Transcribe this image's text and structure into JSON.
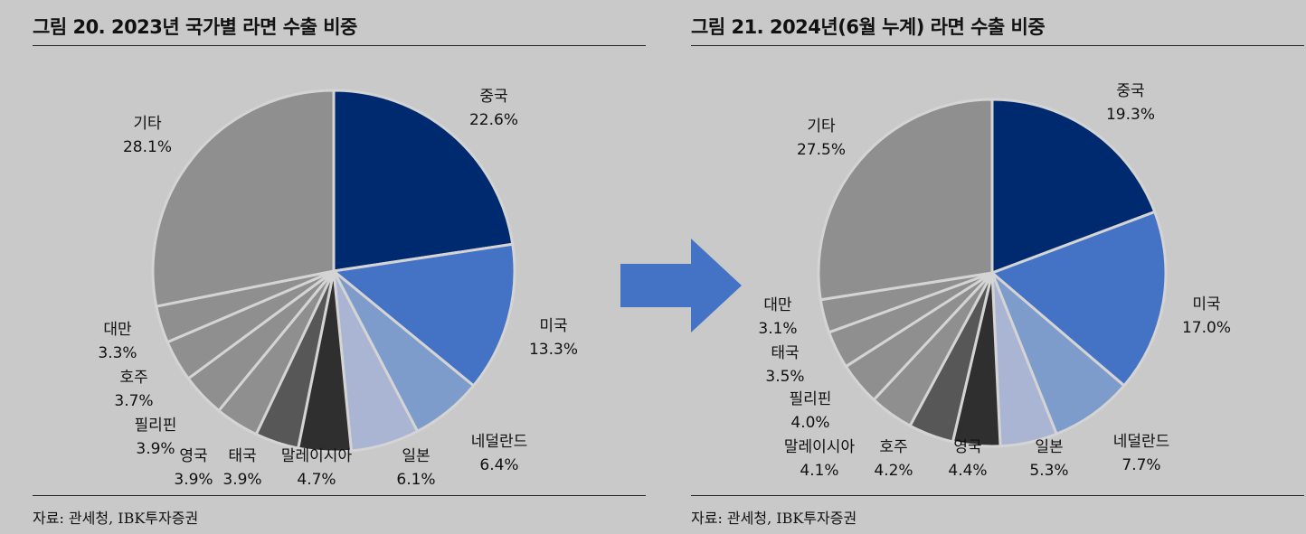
{
  "left": {
    "title": "그림 20. 2023년 국가별 라면 수출 비중",
    "source": "자료: 관세청, IBK투자증권"
  },
  "right": {
    "title": "그림 21. 2024년(6월 누계) 라면 수출 비중",
    "source": "자료: 관세청, IBK투자증권"
  },
  "arrow_icon": "arrow-right-icon",
  "chart_data": [
    {
      "type": "pie",
      "title": "그림 20. 2023년 국가별 라면 수출 비중",
      "slices": [
        {
          "label": "중국",
          "value": 22.6,
          "display": "22.6%",
          "color": "#002a70"
        },
        {
          "label": "미국",
          "value": 13.3,
          "display": "13.3%",
          "color": "#4472c4"
        },
        {
          "label": "네덜란드",
          "value": 6.4,
          "display": "6.4%",
          "color": "#7e9ccb"
        },
        {
          "label": "일본",
          "value": 6.1,
          "display": "6.1%",
          "color": "#aab5d4"
        },
        {
          "label": "말레이시아",
          "value": 4.7,
          "display": "4.7%",
          "color": "#2f2f2f"
        },
        {
          "label": "태국",
          "value": 3.9,
          "display": "3.9%",
          "color": "#575757"
        },
        {
          "label": "영국",
          "value": 3.9,
          "display": "3.9%",
          "color": "#8f8f8f"
        },
        {
          "label": "필리핀",
          "value": 3.9,
          "display": "3.9%",
          "color": "#8f8f8f"
        },
        {
          "label": "호주",
          "value": 3.7,
          "display": "3.7%",
          "color": "#8f8f8f"
        },
        {
          "label": "대만",
          "value": 3.3,
          "display": "3.3%",
          "color": "#8f8f8f"
        },
        {
          "label": "기타",
          "value": 28.1,
          "display": "28.1%",
          "color": "#8f8f8f"
        }
      ]
    },
    {
      "type": "pie",
      "title": "그림 21. 2024년(6월 누계) 라면 수출 비중",
      "slices": [
        {
          "label": "중국",
          "value": 19.3,
          "display": "19.3%",
          "color": "#002a70"
        },
        {
          "label": "미국",
          "value": 17.0,
          "display": "17.0%",
          "color": "#4472c4"
        },
        {
          "label": "네덜란드",
          "value": 7.7,
          "display": "7.7%",
          "color": "#7e9ccb"
        },
        {
          "label": "일본",
          "value": 5.3,
          "display": "5.3%",
          "color": "#aab5d4"
        },
        {
          "label": "영국",
          "value": 4.4,
          "display": "4.4%",
          "color": "#2f2f2f"
        },
        {
          "label": "호주",
          "value": 4.2,
          "display": "4.2%",
          "color": "#575757"
        },
        {
          "label": "말레이시아",
          "value": 4.1,
          "display": "4.1%",
          "color": "#8f8f8f"
        },
        {
          "label": "필리핀",
          "value": 4.0,
          "display": "4.0%",
          "color": "#8f8f8f"
        },
        {
          "label": "태국",
          "value": 3.5,
          "display": "3.5%",
          "color": "#8f8f8f"
        },
        {
          "label": "대만",
          "value": 3.1,
          "display": "3.1%",
          "color": "#8f8f8f"
        },
        {
          "label": "기타",
          "value": 27.5,
          "display": "27.5%",
          "color": "#8f8f8f"
        }
      ]
    }
  ]
}
